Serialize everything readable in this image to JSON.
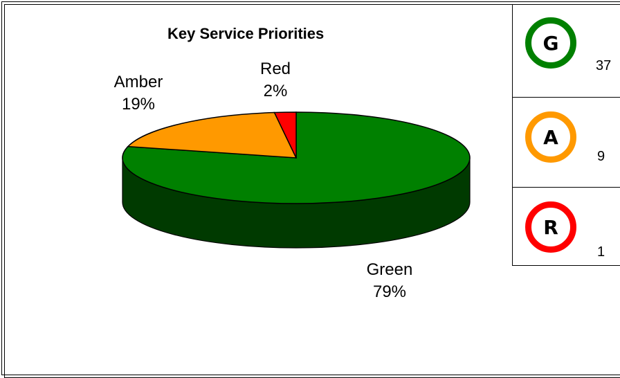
{
  "chart_data": {
    "type": "pie",
    "title": "Key Service Priorities",
    "slices": [
      {
        "name": "Green",
        "percent": 79,
        "label": "79%",
        "color": "#008000"
      },
      {
        "name": "Amber",
        "percent": 19,
        "label": "19%",
        "color": "#ff9900"
      },
      {
        "name": "Red",
        "percent": 2,
        "label": "2%",
        "color": "#ff0000"
      }
    ],
    "style": "3d"
  },
  "rag_panel": {
    "items": [
      {
        "letter": "G",
        "count": "37",
        "ring_color": "#008000"
      },
      {
        "letter": "A",
        "count": "9",
        "ring_color": "#ff9900"
      },
      {
        "letter": "R",
        "count": "1",
        "ring_color": "#ff0000"
      }
    ]
  }
}
